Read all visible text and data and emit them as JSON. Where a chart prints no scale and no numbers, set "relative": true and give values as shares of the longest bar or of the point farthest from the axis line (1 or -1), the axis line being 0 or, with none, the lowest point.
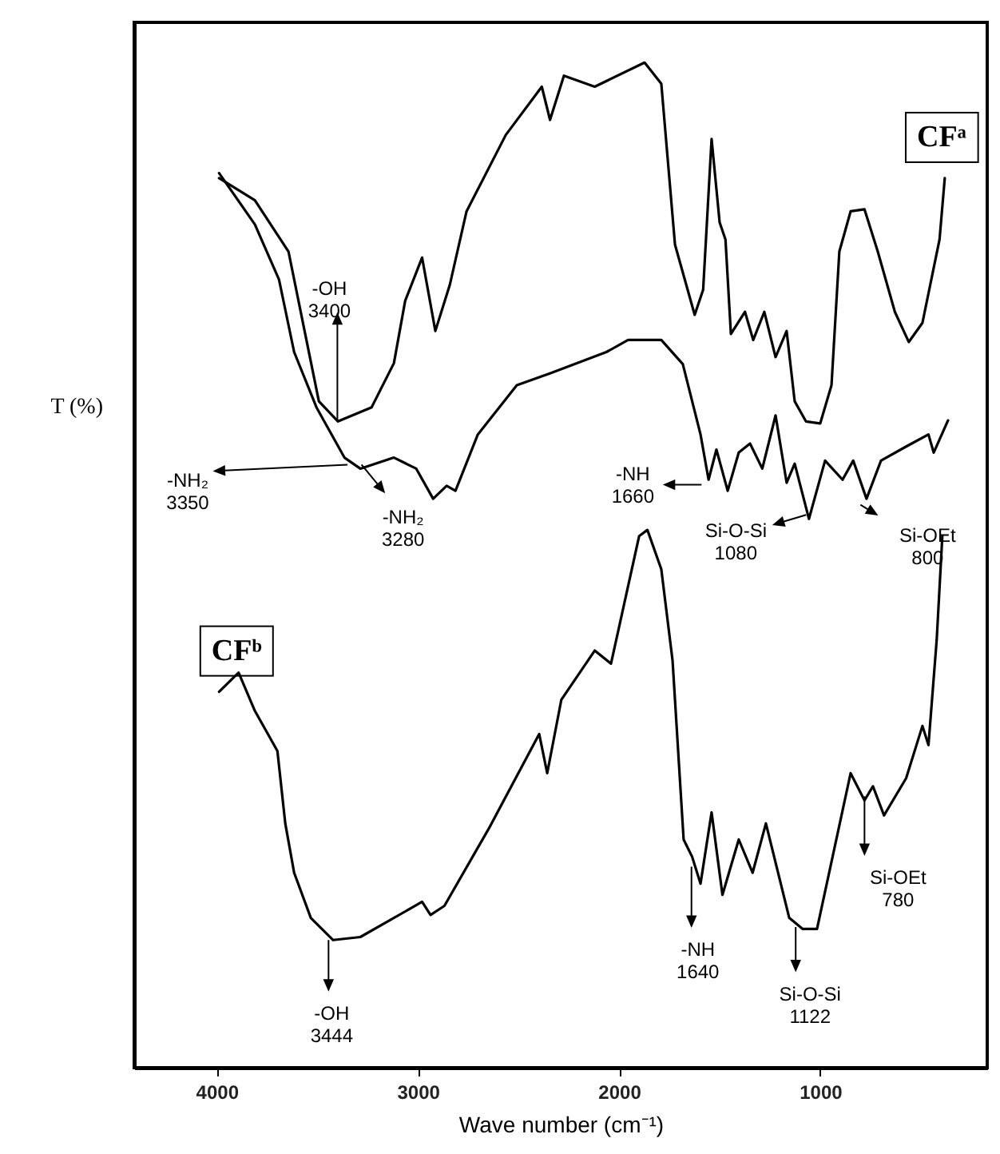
{
  "chart_data": {
    "type": "line",
    "relative": true,
    "xlabel": "Wave number (cm⁻¹)",
    "ylabel": "T (%)",
    "xlim": [
      4410,
      170
    ],
    "xticks": [
      4000,
      3000,
      2000,
      1000
    ],
    "series": [
      {
        "name": "CFᵃ",
        "color": "#000000",
        "x": [
          3988,
          3810,
          3643,
          3560,
          3492,
          3397,
          3230,
          3119,
          3063,
          2979,
          2913,
          2841,
          2758,
          2563,
          2384,
          2343,
          2274,
          2121,
          1873,
          1790,
          1722,
          1624,
          1582,
          1540,
          1500,
          1471,
          1444,
          1374,
          1333,
          1278,
          1222,
          1167,
          1127,
          1071,
          1000,
          944,
          905,
          849,
          780,
          714,
          629,
          560,
          492,
          407,
          381
        ],
        "values": [
          0.885,
          0.863,
          0.812,
          0.73,
          0.663,
          0.643,
          0.657,
          0.701,
          0.763,
          0.806,
          0.733,
          0.779,
          0.852,
          0.928,
          0.976,
          0.943,
          0.987,
          0.976,
          1.0,
          0.979,
          0.819,
          0.749,
          0.774,
          0.924,
          0.841,
          0.824,
          0.73,
          0.752,
          0.724,
          0.752,
          0.707,
          0.733,
          0.663,
          0.643,
          0.641,
          0.679,
          0.812,
          0.852,
          0.854,
          0.812,
          0.752,
          0.722,
          0.741,
          0.824,
          0.885
        ]
      },
      {
        "color": "#000000",
        "x": [
          3988,
          3810,
          3690,
          3615,
          3504,
          3365,
          3286,
          3119,
          3008,
          2924,
          2857,
          2813,
          2702,
          2508,
          2341,
          2063,
          1955,
          1790,
          1683,
          1595,
          1555,
          1516,
          1460,
          1405,
          1349,
          1288,
          1222,
          1167,
          1127,
          1056,
          976,
          889,
          836,
          770,
          698,
          573,
          462,
          436,
          365
        ],
        "values": [
          0.89,
          0.839,
          0.784,
          0.712,
          0.657,
          0.607,
          0.596,
          0.607,
          0.596,
          0.566,
          0.579,
          0.574,
          0.63,
          0.679,
          0.691,
          0.712,
          0.724,
          0.724,
          0.7,
          0.63,
          0.585,
          0.615,
          0.574,
          0.612,
          0.621,
          0.596,
          0.649,
          0.582,
          0.601,
          0.546,
          0.604,
          0.585,
          0.604,
          0.566,
          0.604,
          0.618,
          0.63,
          0.612,
          0.644
        ]
      },
      {
        "name": "CFᵇ",
        "color": "#000000",
        "x": [
          3988,
          3891,
          3810,
          3698,
          3659,
          3615,
          3532,
          3421,
          3286,
          2979,
          2937,
          2868,
          2647,
          2397,
          2357,
          2287,
          2121,
          2040,
          1900,
          1859,
          1790,
          1734,
          1679,
          1637,
          1595,
          1540,
          1486,
          1405,
          1336,
          1270,
          1154,
          1087,
          1016,
          849,
          780,
          738,
          683,
          573,
          492,
          462,
          421,
          393
        ],
        "values": [
          0.374,
          0.393,
          0.355,
          0.315,
          0.243,
          0.194,
          0.149,
          0.127,
          0.13,
          0.165,
          0.152,
          0.161,
          0.238,
          0.332,
          0.293,
          0.366,
          0.415,
          0.402,
          0.529,
          0.535,
          0.496,
          0.405,
          0.227,
          0.21,
          0.183,
          0.254,
          0.172,
          0.227,
          0.194,
          0.243,
          0.149,
          0.138,
          0.138,
          0.293,
          0.266,
          0.28,
          0.251,
          0.288,
          0.34,
          0.321,
          0.426,
          0.529
        ]
      }
    ],
    "annotations": [
      {
        "text": "-OH\n3400",
        "x": 3400,
        "y": 0.643
      },
      {
        "text": "-NH₂\n3350",
        "x": 3350,
        "y": 0.6
      },
      {
        "text": "-NH₂\n3280",
        "x": 3280,
        "y": 0.6
      },
      {
        "text": "-NH\n1660",
        "x": 1590,
        "y": 0.58
      },
      {
        "text": "Si-O-Si\n1080",
        "x": 1070,
        "y": 0.55
      },
      {
        "text": "Si-OEt\n800",
        "x": 800,
        "y": 0.56
      },
      {
        "text": "-OH\n3444",
        "x": 3444,
        "y": 0.127
      },
      {
        "text": "-NH\n1640",
        "x": 1640,
        "y": 0.2
      },
      {
        "text": "Si-O-Si\n1122",
        "x": 1122,
        "y": 0.14
      },
      {
        "text": "Si-OEt\n780",
        "x": 780,
        "y": 0.27
      }
    ]
  }
}
